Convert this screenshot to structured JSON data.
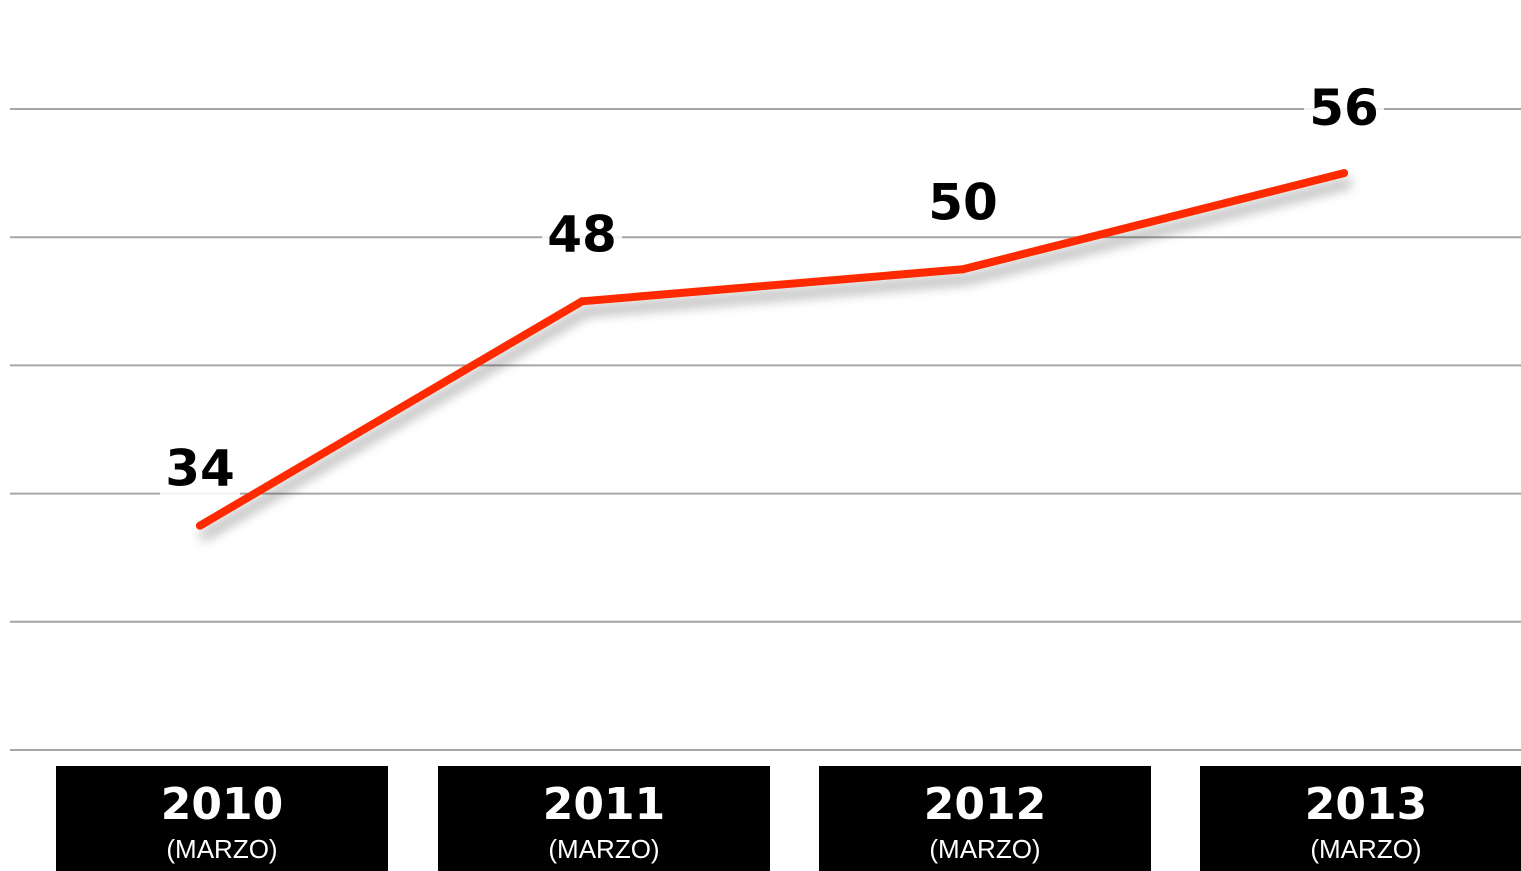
{
  "chart_data": {
    "type": "line",
    "title": "",
    "xlabel": "",
    "ylabel": "",
    "categories": [
      "2010",
      "2011",
      "2012",
      "2013"
    ],
    "category_sublabels": [
      "(MARZO)",
      "(MARZO)",
      "(MARZO)",
      "(MARZO)"
    ],
    "series": [
      {
        "values": [
          34,
          48,
          50,
          56
        ]
      }
    ],
    "ylim": [
      20,
      60
    ],
    "y_gridlines": [
      20,
      28,
      36,
      44,
      52,
      60
    ],
    "grid": true,
    "legend": "none",
    "data_labels": true,
    "colors": {
      "line": "#ff2a00",
      "grid": "#a6a6a6",
      "category_box": "#000000",
      "category_text": "#ffffff",
      "label_text": "#000000"
    }
  }
}
